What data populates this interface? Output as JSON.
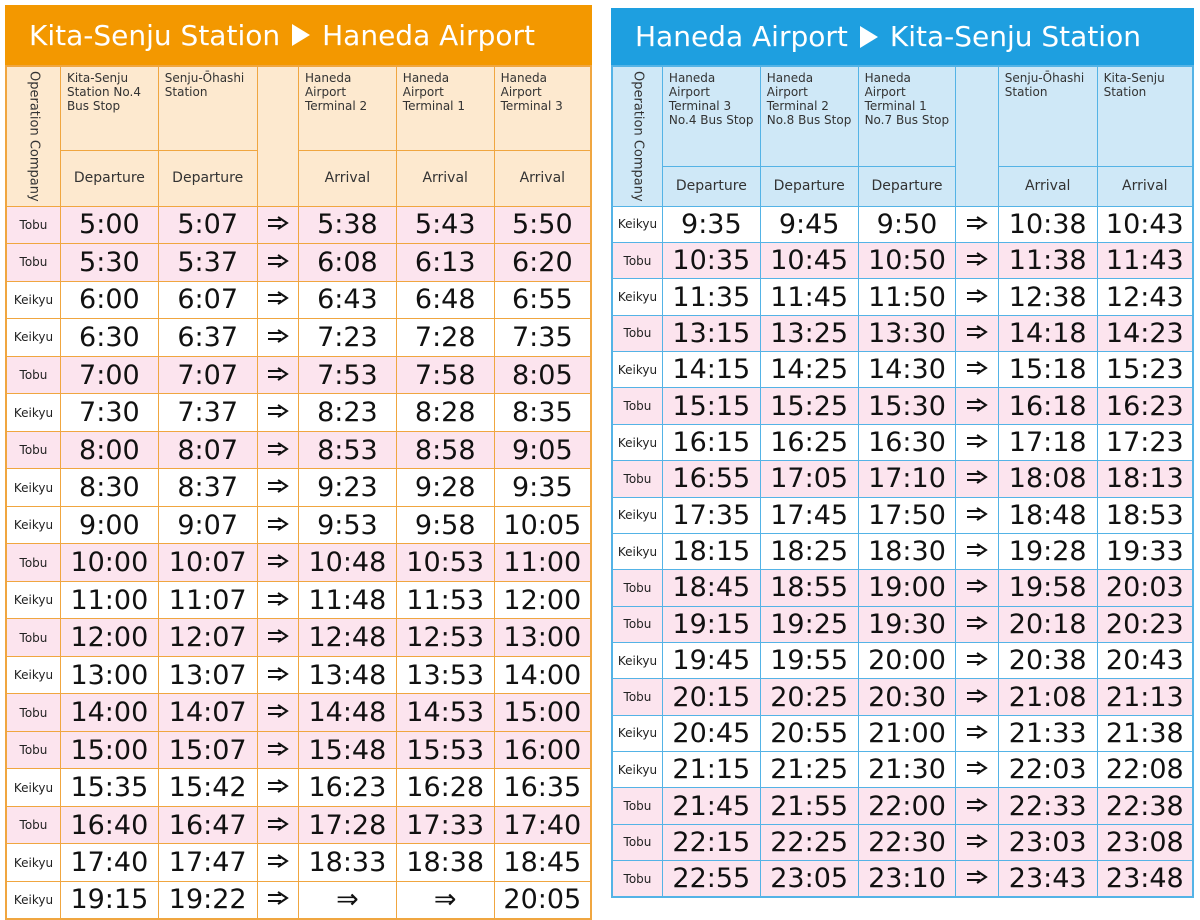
{
  "left": {
    "title_from": "Kita-Senju Station",
    "title_to": "Haneda Airport",
    "company_header": "Operation Company",
    "stops": [
      {
        "name": "Kita-Senju\nStation No.4\nBus Stop",
        "event": "Departure"
      },
      {
        "name": "Senju-Ōhashi\nStation",
        "event": "Departure"
      },
      {
        "name": "Haneda\nAirport\nTerminal 2",
        "event": "Arrival"
      },
      {
        "name": "Haneda\nAirport\nTerminal 1",
        "event": "Arrival"
      },
      {
        "name": "Haneda Airport\nTerminal 3",
        "event": "Arrival"
      }
    ],
    "rows": [
      [
        "Tobu",
        "5:00",
        "5:07",
        "5:38",
        "5:43",
        "5:50"
      ],
      [
        "Tobu",
        "5:30",
        "5:37",
        "6:08",
        "6:13",
        "6:20"
      ],
      [
        "Keikyu",
        "6:00",
        "6:07",
        "6:43",
        "6:48",
        "6:55"
      ],
      [
        "Keikyu",
        "6:30",
        "6:37",
        "7:23",
        "7:28",
        "7:35"
      ],
      [
        "Tobu",
        "7:00",
        "7:07",
        "7:53",
        "7:58",
        "8:05"
      ],
      [
        "Keikyu",
        "7:30",
        "7:37",
        "8:23",
        "8:28",
        "8:35"
      ],
      [
        "Tobu",
        "8:00",
        "8:07",
        "8:53",
        "8:58",
        "9:05"
      ],
      [
        "Keikyu",
        "8:30",
        "8:37",
        "9:23",
        "9:28",
        "9:35"
      ],
      [
        "Keikyu",
        "9:00",
        "9:07",
        "9:53",
        "9:58",
        "10:05"
      ],
      [
        "Tobu",
        "10:00",
        "10:07",
        "10:48",
        "10:53",
        "11:00"
      ],
      [
        "Keikyu",
        "11:00",
        "11:07",
        "11:48",
        "11:53",
        "12:00"
      ],
      [
        "Tobu",
        "12:00",
        "12:07",
        "12:48",
        "12:53",
        "13:00"
      ],
      [
        "Keikyu",
        "13:00",
        "13:07",
        "13:48",
        "13:53",
        "14:00"
      ],
      [
        "Tobu",
        "14:00",
        "14:07",
        "14:48",
        "14:53",
        "15:00"
      ],
      [
        "Tobu",
        "15:00",
        "15:07",
        "15:48",
        "15:53",
        "16:00"
      ],
      [
        "Keikyu",
        "15:35",
        "15:42",
        "16:23",
        "16:28",
        "16:35"
      ],
      [
        "Tobu",
        "16:40",
        "16:47",
        "17:28",
        "17:33",
        "17:40"
      ],
      [
        "Keikyu",
        "17:40",
        "17:47",
        "18:33",
        "18:38",
        "18:45"
      ],
      [
        "Keikyu",
        "19:15",
        "19:22",
        "⇒",
        "⇒",
        "20:05"
      ]
    ]
  },
  "right": {
    "title_from": "Haneda Airport",
    "title_to": "Kita-Senju Station",
    "company_header": "Operation Company",
    "stops": [
      {
        "name": "Haneda Airport\nTerminal 3\nNo.4 Bus Stop",
        "event": "Departure"
      },
      {
        "name": "Haneda Airport\nTerminal 2\nNo.8 Bus Stop",
        "event": "Departure"
      },
      {
        "name": "Haneda Airport\nTerminal 1\nNo.7 Bus Stop",
        "event": "Departure"
      },
      {
        "name": "Senju-Ōhashi\nStation",
        "event": "Arrival"
      },
      {
        "name": "Kita-Senju\nStation",
        "event": "Arrival"
      }
    ],
    "rows": [
      [
        "Keikyu",
        "9:35",
        "9:45",
        "9:50",
        "10:38",
        "10:43"
      ],
      [
        "Tobu",
        "10:35",
        "10:45",
        "10:50",
        "11:38",
        "11:43"
      ],
      [
        "Keikyu",
        "11:35",
        "11:45",
        "11:50",
        "12:38",
        "12:43"
      ],
      [
        "Tobu",
        "13:15",
        "13:25",
        "13:30",
        "14:18",
        "14:23"
      ],
      [
        "Keikyu",
        "14:15",
        "14:25",
        "14:30",
        "15:18",
        "15:23"
      ],
      [
        "Tobu",
        "15:15",
        "15:25",
        "15:30",
        "16:18",
        "16:23"
      ],
      [
        "Keikyu",
        "16:15",
        "16:25",
        "16:30",
        "17:18",
        "17:23"
      ],
      [
        "Tobu",
        "16:55",
        "17:05",
        "17:10",
        "18:08",
        "18:13"
      ],
      [
        "Keikyu",
        "17:35",
        "17:45",
        "17:50",
        "18:48",
        "18:53"
      ],
      [
        "Keikyu",
        "18:15",
        "18:25",
        "18:30",
        "19:28",
        "19:33"
      ],
      [
        "Tobu",
        "18:45",
        "18:55",
        "19:00",
        "19:58",
        "20:03"
      ],
      [
        "Tobu",
        "19:15",
        "19:25",
        "19:30",
        "20:18",
        "20:23"
      ],
      [
        "Keikyu",
        "19:45",
        "19:55",
        "20:00",
        "20:38",
        "20:43"
      ],
      [
        "Tobu",
        "20:15",
        "20:25",
        "20:30",
        "21:08",
        "21:13"
      ],
      [
        "Keikyu",
        "20:45",
        "20:55",
        "21:00",
        "21:33",
        "21:38"
      ],
      [
        "Keikyu",
        "21:15",
        "21:25",
        "21:30",
        "22:03",
        "22:08"
      ],
      [
        "Tobu",
        "21:45",
        "21:55",
        "22:00",
        "22:33",
        "22:38"
      ],
      [
        "Tobu",
        "22:15",
        "22:25",
        "22:30",
        "23:03",
        "23:08"
      ],
      [
        "Tobu",
        "22:55",
        "23:05",
        "23:10",
        "23:43",
        "23:48"
      ]
    ]
  }
}
